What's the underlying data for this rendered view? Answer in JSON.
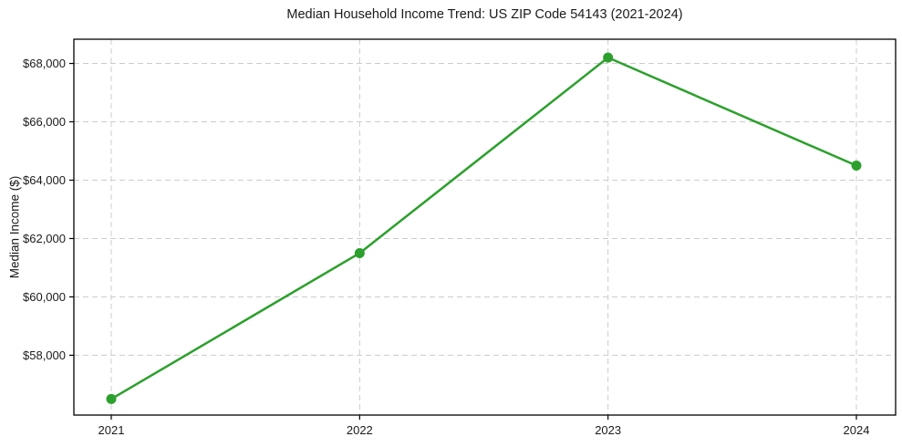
{
  "chart_data": {
    "type": "line",
    "title": "Median Household Income Trend: US ZIP Code 54143 (2021-2024)",
    "xlabel": "",
    "ylabel": "Median Income ($)",
    "x": [
      "2021",
      "2022",
      "2023",
      "2024"
    ],
    "values": [
      56500,
      61500,
      68200,
      64500
    ],
    "ylim": [
      55950,
      68830
    ],
    "yticks": [
      {
        "value": 58000,
        "label": "$58,000"
      },
      {
        "value": 60000,
        "label": "$60,000"
      },
      {
        "value": 62000,
        "label": "$62,000"
      },
      {
        "value": 64000,
        "label": "$64,000"
      },
      {
        "value": 66000,
        "label": "$66,000"
      },
      {
        "value": 68000,
        "label": "$68,000"
      }
    ],
    "grid": true,
    "grid_style": "dashed",
    "grid_color": "#cccccc",
    "line_color": "#2ca02c",
    "marker": "circle",
    "legend_position": "none",
    "frame_color": "#000000",
    "plot_background": "#ffffff"
  }
}
